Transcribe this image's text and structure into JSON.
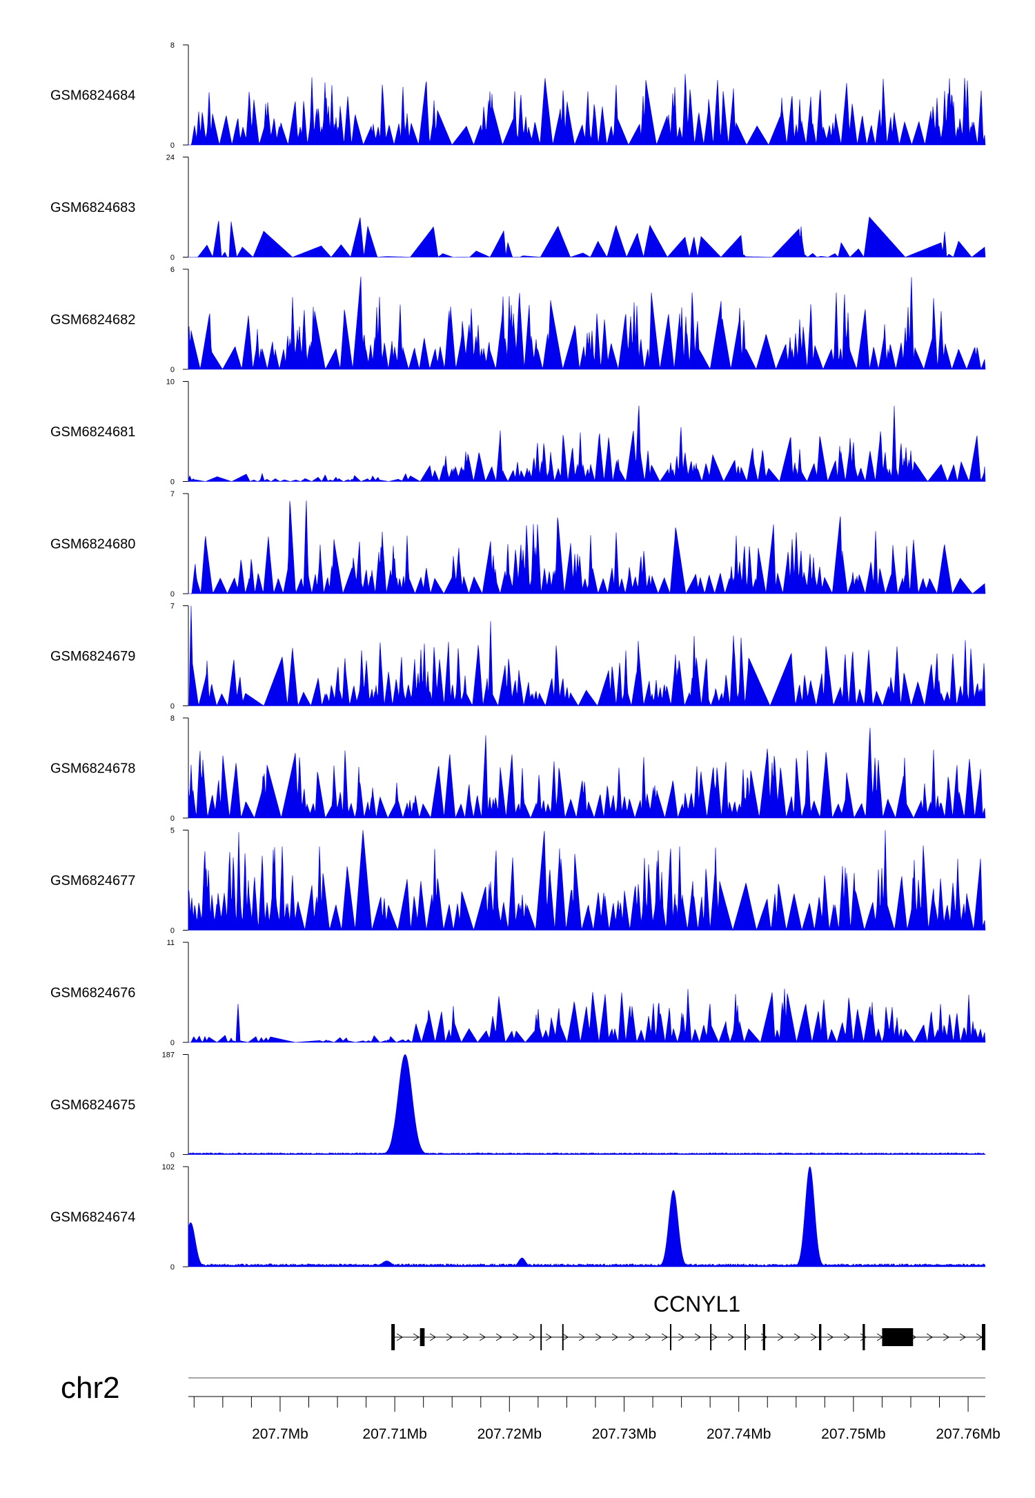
{
  "chart_data": {
    "type": "area",
    "genome": {
      "chromosome": "chr2",
      "region_mb": [
        207.692,
        207.7615
      ],
      "ticks_mb": [
        207.7,
        207.71,
        207.72,
        207.73,
        207.74,
        207.75,
        207.76
      ],
      "tick_labels": [
        "207.7Mb",
        "207.71Mb",
        "207.72Mb",
        "207.73Mb",
        "207.74Mb",
        "207.75Mb",
        "207.76Mb"
      ]
    },
    "colors": {
      "signal": "#0000ee",
      "axis": "#000000",
      "gene": "#000000",
      "ruler": "#888888"
    },
    "tracks": [
      {
        "name": "GSM6824684",
        "ymax_label": "8",
        "ymin_label": "0",
        "ymax": 8,
        "profile": "uniform",
        "base": 0.18,
        "amp": 0.55,
        "peak_count": 150
      },
      {
        "name": "GSM6824683",
        "ymax_label": "24",
        "ymin_label": "0",
        "ymax": 24,
        "profile": "sparse",
        "base": 0.0,
        "amp": 0.45,
        "peak_count": 48
      },
      {
        "name": "GSM6824682",
        "ymax_label": "6",
        "ymin_label": "0",
        "ymax": 6,
        "profile": "uniform",
        "base": 0.2,
        "amp": 0.6,
        "peak_count": 150
      },
      {
        "name": "GSM6824681",
        "ymax_label": "10",
        "ymin_label": "0",
        "ymax": 10,
        "profile": "ramp",
        "base": 0.05,
        "amp": 0.55,
        "peak_count": 140
      },
      {
        "name": "GSM6824680",
        "ymax_label": "7",
        "ymin_label": "0",
        "ymax": 7,
        "profile": "uniform",
        "base": 0.15,
        "amp": 0.55,
        "peak_count": 150
      },
      {
        "name": "GSM6824679",
        "ymax_label": "7",
        "ymin_label": "0",
        "ymax": 7,
        "profile": "uniform",
        "base": 0.12,
        "amp": 0.6,
        "peak_count": 150
      },
      {
        "name": "GSM6824678",
        "ymax_label": "8",
        "ymin_label": "0",
        "ymax": 8,
        "profile": "uniform",
        "base": 0.14,
        "amp": 0.55,
        "peak_count": 150
      },
      {
        "name": "GSM6824677",
        "ymax_label": "5",
        "ymin_label": "0",
        "ymax": 5,
        "profile": "uniform",
        "base": 0.25,
        "amp": 0.6,
        "peak_count": 160
      },
      {
        "name": "GSM6824676",
        "ymax_label": "11",
        "ymin_label": "0",
        "ymax": 11,
        "profile": "ramp",
        "base": 0.05,
        "amp": 0.5,
        "peak_count": 140
      },
      {
        "name": "GSM6824675",
        "ymax_label": "187",
        "ymin_label": "0",
        "ymax": 187,
        "profile": "peaks",
        "background": 0.012,
        "peaks": [
          {
            "pos_mb": 207.7109,
            "height": 187,
            "width_mb": 0.0006
          },
          {
            "pos_mb": 207.7104,
            "height": 95,
            "width_mb": 0.0003
          },
          {
            "pos_mb": 207.7101,
            "height": 60,
            "width_mb": 0.0003
          }
        ]
      },
      {
        "name": "GSM6824674",
        "ymax_label": "102",
        "ymin_label": "0",
        "ymax": 102,
        "profile": "peaks",
        "background": 0.02,
        "peaks": [
          {
            "pos_mb": 207.6922,
            "height": 45,
            "width_mb": 0.0004
          },
          {
            "pos_mb": 207.7093,
            "height": 6,
            "width_mb": 0.0004
          },
          {
            "pos_mb": 207.7211,
            "height": 9,
            "width_mb": 0.0003
          },
          {
            "pos_mb": 207.7343,
            "height": 78,
            "width_mb": 0.0004
          },
          {
            "pos_mb": 207.7462,
            "height": 102,
            "width_mb": 0.0004
          }
        ]
      }
    ],
    "gene": {
      "name": "CCNYL1",
      "start_mb": 207.7097,
      "end_mb": 207.7615,
      "strand": "+",
      "exons_mb": [
        [
          207.7097,
          207.71
        ],
        [
          207.7122,
          207.7126
        ],
        [
          207.7227,
          207.7228
        ],
        [
          207.7246,
          207.7247
        ],
        [
          207.734,
          207.7341
        ],
        [
          207.7375,
          207.7376
        ],
        [
          207.7405,
          207.7406
        ],
        [
          207.7421,
          207.7423
        ],
        [
          207.747,
          207.7472
        ],
        [
          207.7508,
          207.751
        ],
        [
          207.7525,
          207.7552
        ],
        [
          207.7612,
          207.7615
        ]
      ]
    }
  }
}
